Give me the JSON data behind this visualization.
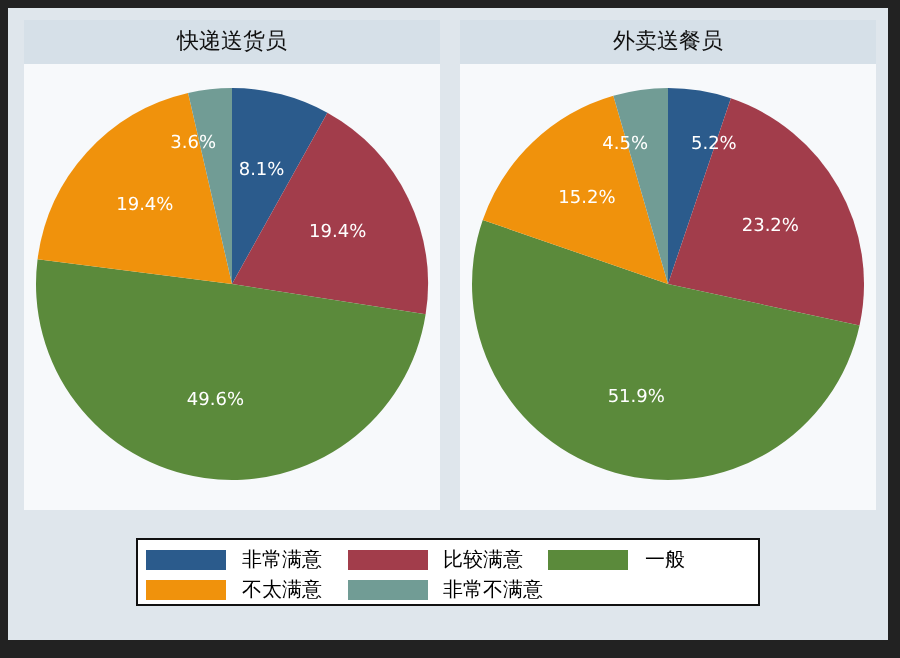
{
  "chart_data": [
    {
      "type": "pie",
      "title": "快递送货员",
      "categories": [
        "非常满意",
        "比较满意",
        "一般",
        "不太满意",
        "非常不满意"
      ],
      "values": [
        8.1,
        19.4,
        49.6,
        19.4,
        3.6
      ],
      "colors": [
        "#2b5b8c",
        "#a23d4b",
        "#5b8a3b",
        "#f0920c",
        "#719c95"
      ],
      "value_labels": [
        "8.1%",
        "19.4%",
        "49.6%",
        "19.4%",
        "3.6%"
      ],
      "legend": "bottom"
    },
    {
      "type": "pie",
      "title": "外卖送餐员",
      "categories": [
        null,
        null,
        null,
        null,
        null
      ],
      "values": [
        5.2,
        23.2,
        51.9,
        15.2,
        4.5
      ],
      "colors": [
        "#2b5b8c",
        "#a23d4b",
        "#5b8a3b",
        "#f0920c",
        "#719c95"
      ],
      "value_labels": [
        "5.2%",
        "23.2%",
        "51.9%",
        "15.2%",
        "4.5%"
      ]
    }
  ]
}
